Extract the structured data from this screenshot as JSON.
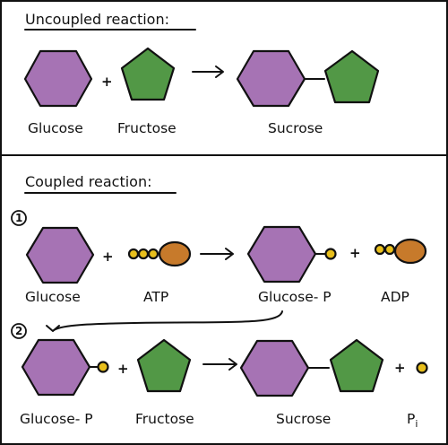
{
  "panels": {
    "uncoupled": {
      "title": "Uncoupled reaction:",
      "plus": "+",
      "labels": {
        "glucose": "Glucose",
        "fructose": "Fructose",
        "sucrose": "Sucrose"
      }
    },
    "coupled": {
      "title": "Coupled reaction:",
      "step1": {
        "number": "1",
        "plus1": "+",
        "plus2": "+",
        "labels": {
          "glucose": "Glucose",
          "atp": "ATP",
          "glucose_p": "Glucose- P",
          "adp": "ADP"
        }
      },
      "step2": {
        "number": "2",
        "plus1": "+",
        "plus2": "+",
        "labels": {
          "glucose_p": "Glucose- P",
          "fructose": "Fructose",
          "sucrose": "Sucrose",
          "pi": "P",
          "pi_sub": "i"
        }
      }
    }
  },
  "colors": {
    "glucose": "#a673b4",
    "fructose": "#529846",
    "phosphate": "#e8bf1c",
    "adenosine": "#c77a2b"
  }
}
